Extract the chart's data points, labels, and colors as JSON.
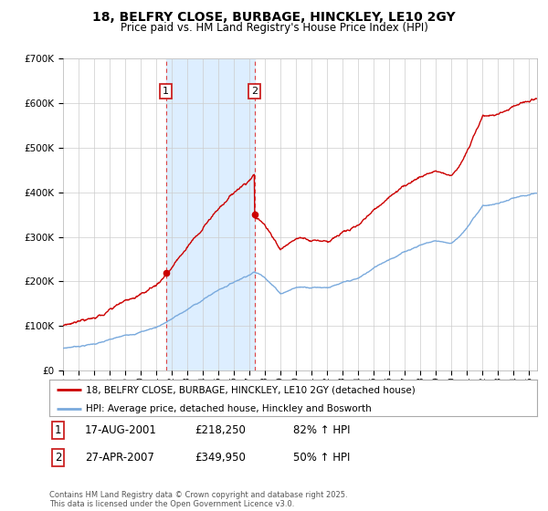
{
  "title": "18, BELFRY CLOSE, BURBAGE, HINCKLEY, LE10 2GY",
  "subtitle": "Price paid vs. HM Land Registry's House Price Index (HPI)",
  "legend_line1": "18, BELFRY CLOSE, BURBAGE, HINCKLEY, LE10 2GY (detached house)",
  "legend_line2": "HPI: Average price, detached house, Hinckley and Bosworth",
  "footnote": "Contains HM Land Registry data © Crown copyright and database right 2025.\nThis data is licensed under the Open Government Licence v3.0.",
  "transaction1_label": "1",
  "transaction1_date": "17-AUG-2001",
  "transaction1_price": "£218,250",
  "transaction1_hpi": "82% ↑ HPI",
  "transaction2_label": "2",
  "transaction2_date": "27-APR-2007",
  "transaction2_price": "£349,950",
  "transaction2_hpi": "50% ↑ HPI",
  "transaction1_year": 2001.625,
  "transaction2_year": 2007.32,
  "price1": 218250,
  "price2": 349950,
  "red_color": "#cc0000",
  "blue_color": "#7aaadd",
  "shade_color": "#ddeeff",
  "vline_color": "#dd4444",
  "grid_color": "#cccccc",
  "ylim": [
    0,
    700000
  ],
  "yticks": [
    0,
    100000,
    200000,
    300000,
    400000,
    500000,
    600000,
    700000
  ],
  "xstart": 1995,
  "xend": 2025.5,
  "background": "#ffffff",
  "title_fontsize": 10,
  "subtitle_fontsize": 8.5
}
